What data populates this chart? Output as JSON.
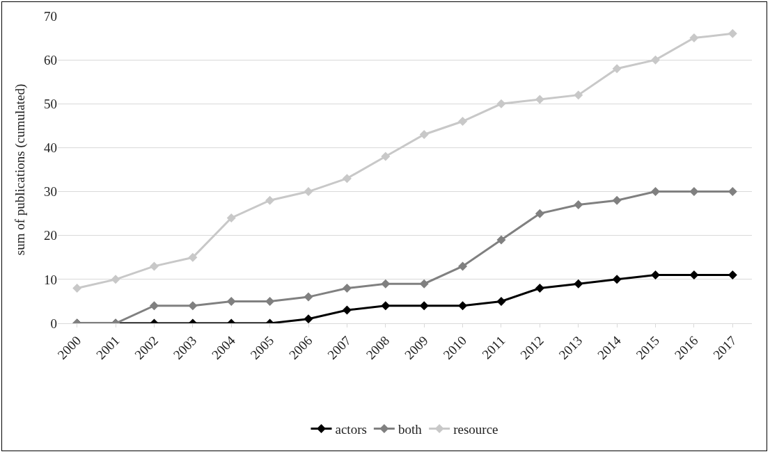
{
  "chart_data": {
    "type": "line",
    "ylabel": "sum of publications (cumulated)",
    "categories": [
      "2000",
      "2001",
      "2002",
      "2003",
      "2004",
      "2005",
      "2006",
      "2007",
      "2008",
      "2009",
      "2010",
      "2011",
      "2012",
      "2013",
      "2014",
      "2015",
      "2016",
      "2017"
    ],
    "series": [
      {
        "name": "actors",
        "color": "#000000",
        "values": [
          0,
          0,
          0,
          0,
          0,
          0,
          1,
          3,
          4,
          4,
          4,
          5,
          8,
          9,
          10,
          11,
          11,
          11
        ]
      },
      {
        "name": "both",
        "color": "#808080",
        "values": [
          0,
          0,
          4,
          4,
          5,
          5,
          6,
          8,
          9,
          9,
          13,
          19,
          25,
          27,
          28,
          30,
          30,
          30
        ]
      },
      {
        "name": "resource",
        "color": "#c8c8c8",
        "values": [
          8,
          10,
          13,
          15,
          24,
          28,
          30,
          33,
          38,
          43,
          46,
          50,
          51,
          52,
          58,
          60,
          65,
          66
        ]
      }
    ],
    "ylim": [
      0,
      70
    ],
    "yticks": [
      0,
      10,
      20,
      30,
      40,
      50,
      60,
      70
    ],
    "grid": "y",
    "legend": "bottom",
    "marker": "diamond",
    "line_style": "solid"
  }
}
